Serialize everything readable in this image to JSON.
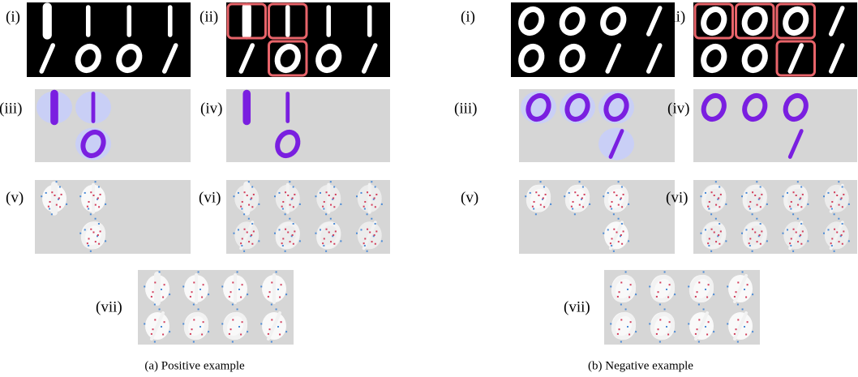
{
  "figures": [
    {
      "caption": "(a) Positive example",
      "panels": [
        "(i)",
        "(ii)",
        "(iii)",
        "(iv)",
        "(v)",
        "(vi)",
        "(vii)"
      ]
    },
    {
      "caption": "(b) Negative example",
      "panels": [
        "(i)",
        "(ii)",
        "(iii)",
        "(iv)",
        "(v)",
        "(vi)",
        "(vii)"
      ]
    }
  ]
}
